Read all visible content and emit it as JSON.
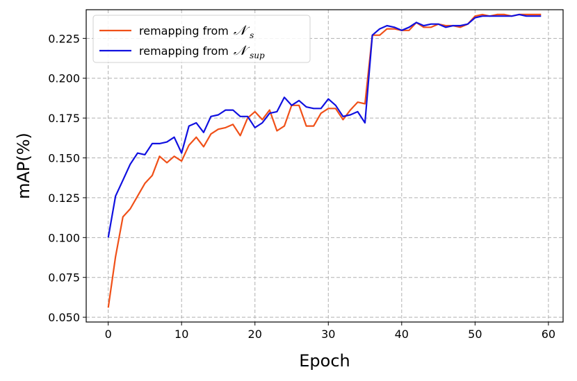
{
  "chart_data": {
    "type": "line",
    "xlabel": "Epoch",
    "ylabel": "mAP(%)",
    "xlim": [
      -3,
      62
    ],
    "ylim": [
      0.047,
      0.243
    ],
    "xticks": [
      0,
      10,
      20,
      30,
      40,
      50,
      60
    ],
    "yticks": [
      0.05,
      0.075,
      0.1,
      0.125,
      0.15,
      0.175,
      0.2,
      0.225
    ],
    "ytick_labels": [
      "0.050",
      "0.075",
      "0.100",
      "0.125",
      "0.150",
      "0.175",
      "0.200",
      "0.225"
    ],
    "grid": true,
    "legend_position": "top-left",
    "series": [
      {
        "name": "remapping from ",
        "math_symbol": "𝒩",
        "math_subscript": "s",
        "color": "#f05018",
        "values": [
          0.056,
          0.088,
          0.113,
          0.118,
          0.126,
          0.134,
          0.139,
          0.151,
          0.147,
          0.151,
          0.148,
          0.158,
          0.163,
          0.157,
          0.165,
          0.168,
          0.169,
          0.171,
          0.164,
          0.175,
          0.179,
          0.174,
          0.18,
          0.167,
          0.17,
          0.183,
          0.183,
          0.17,
          0.17,
          0.178,
          0.181,
          0.181,
          0.174,
          0.18,
          0.185,
          0.184,
          0.227,
          0.227,
          0.231,
          0.231,
          0.23,
          0.23,
          0.235,
          0.232,
          0.232,
          0.234,
          0.233,
          0.233,
          0.232,
          0.234,
          0.239,
          0.24,
          0.239,
          0.24,
          0.24,
          0.239,
          0.24,
          0.24,
          0.24,
          0.24
        ]
      },
      {
        "name": "remapping from ",
        "math_symbol": "𝒩",
        "math_subscript": "sup",
        "color": "#1010e0",
        "values": [
          0.1,
          0.126,
          0.136,
          0.146,
          0.153,
          0.152,
          0.159,
          0.159,
          0.16,
          0.163,
          0.153,
          0.17,
          0.172,
          0.166,
          0.176,
          0.177,
          0.18,
          0.18,
          0.176,
          0.176,
          0.169,
          0.172,
          0.178,
          0.179,
          0.188,
          0.183,
          0.186,
          0.182,
          0.181,
          0.181,
          0.187,
          0.183,
          0.176,
          0.177,
          0.179,
          0.172,
          0.227,
          0.231,
          0.233,
          0.232,
          0.23,
          0.232,
          0.235,
          0.233,
          0.234,
          0.234,
          0.232,
          0.233,
          0.233,
          0.234,
          0.238,
          0.239,
          0.239,
          0.239,
          0.239,
          0.239,
          0.24,
          0.239,
          0.239,
          0.239
        ]
      }
    ]
  }
}
